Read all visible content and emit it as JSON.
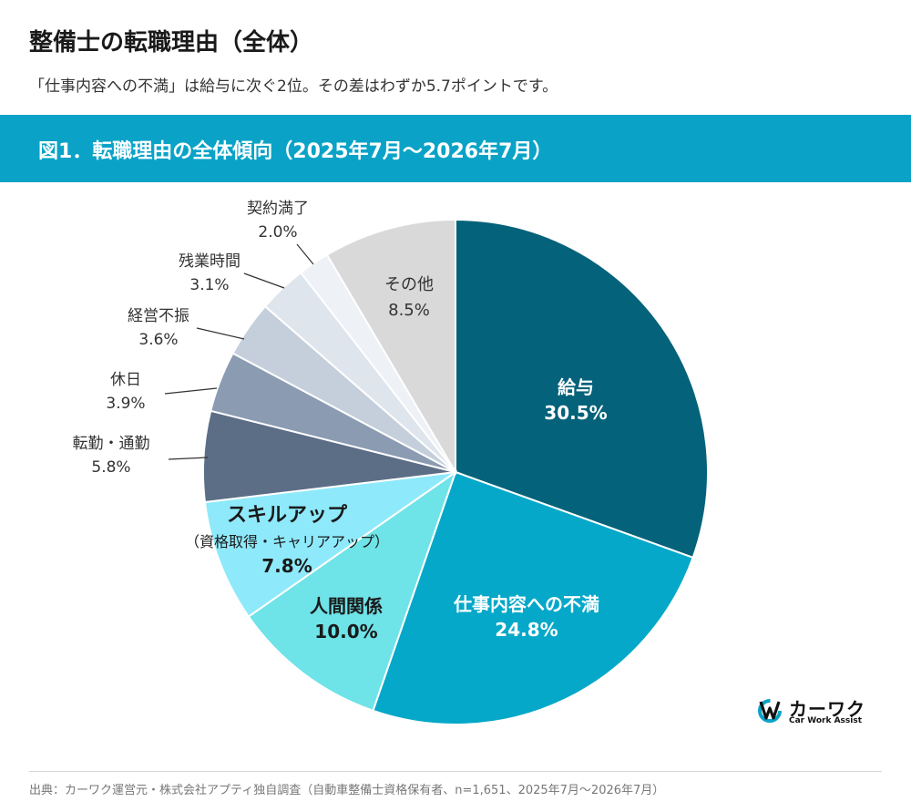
{
  "header": {
    "title": "整備士の転職理由（全体）",
    "subtitle": "「仕事内容への不満」は給与に次ぐ2位。その差はわずか5.7ポイントです。"
  },
  "banner": {
    "label": "図1．転職理由の全体傾向（2025年7月〜2026年7月）"
  },
  "chart_data": {
    "type": "pie",
    "start_angle_deg": 0,
    "direction": "clockwise",
    "slices": [
      {
        "label": "給与",
        "value": 30.5,
        "value_label": "30.5%",
        "color": "#04627a",
        "text_color": "#ffffff",
        "inside": true
      },
      {
        "label": "仕事内容への不満",
        "value": 24.8,
        "value_label": "24.8%",
        "color": "#05a8c8",
        "text_color": "#ffffff",
        "inside": true
      },
      {
        "label": "人間関係",
        "value": 10.0,
        "value_label": "10.0%",
        "color": "#6ee3e8",
        "text_color": "#1a1a1a",
        "inside": true
      },
      {
        "label": "スキルアップ",
        "sublabel": "（資格取得・キャリアアップ）",
        "value": 7.8,
        "value_label": "7.8%",
        "color": "#8ee9fb",
        "text_color": "#1a1a1a",
        "inside": true
      },
      {
        "label": "転勤・通勤",
        "value": 5.8,
        "value_label": "5.8%",
        "color": "#5b6e86",
        "text_color": "#333333",
        "inside": false
      },
      {
        "label": "休日",
        "value": 3.9,
        "value_label": "3.9%",
        "color": "#8b9bb2",
        "text_color": "#333333",
        "inside": false
      },
      {
        "label": "経営不振",
        "value": 3.6,
        "value_label": "3.6%",
        "color": "#c5cfdc",
        "text_color": "#333333",
        "inside": false
      },
      {
        "label": "残業時間",
        "value": 3.1,
        "value_label": "3.1%",
        "color": "#dfe5ed",
        "text_color": "#333333",
        "inside": false
      },
      {
        "label": "契約満了",
        "value": 2.0,
        "value_label": "2.0%",
        "color": "#eef1f6",
        "text_color": "#333333",
        "inside": false
      },
      {
        "label": "その他",
        "value": 8.5,
        "value_label": "8.5%",
        "color": "#d9d9d9",
        "text_color": "#333333",
        "inside": true
      }
    ]
  },
  "logo": {
    "name": "カーワク",
    "tagline": "Car Work Assist"
  },
  "footer": {
    "source": "出典：カーワク運営元・株式会社アプティ独自調査（自動車整備士資格保有者、n=1,651、2025年7月〜2026年7月）"
  },
  "colors": {
    "banner": "#0aa3c7",
    "logo_accent": "#0aa3c7"
  }
}
